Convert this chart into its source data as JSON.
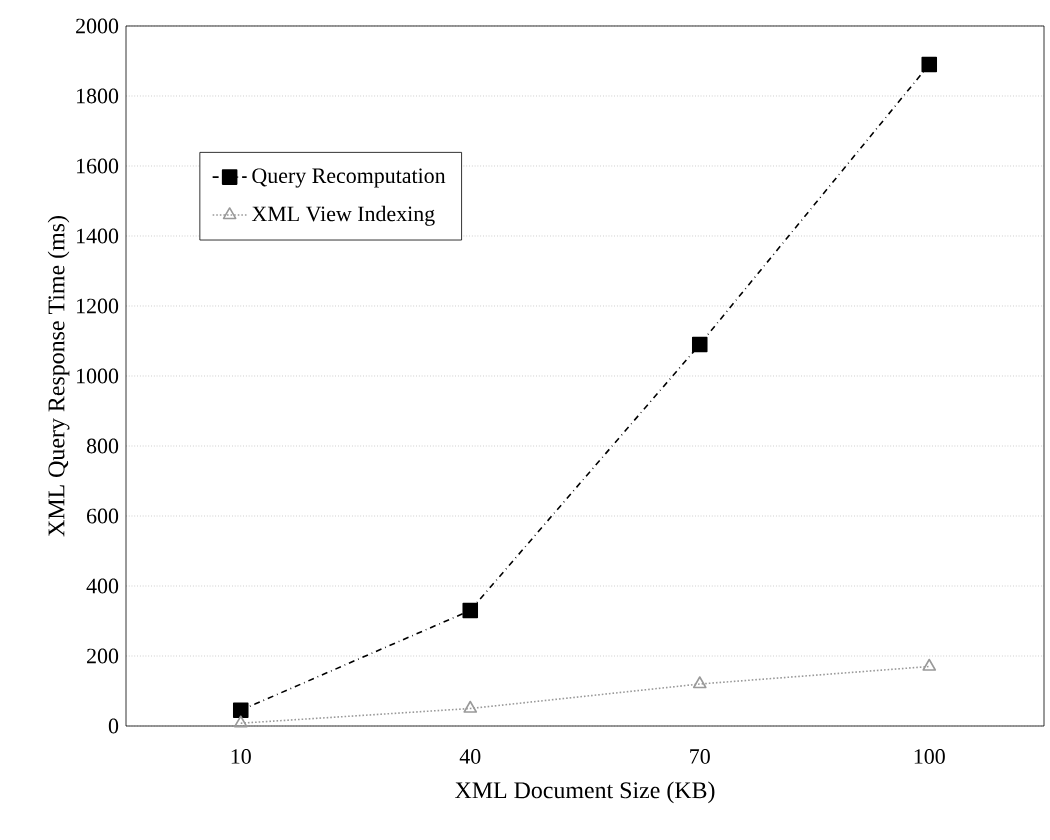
{
  "chart_data": {
    "type": "line",
    "xlabel": "XML Document Size (KB)",
    "ylabel": "XML Query Response Time (ms)",
    "categories": [
      "10",
      "40",
      "70",
      "100"
    ],
    "series": [
      {
        "name": "Query Recomputation",
        "color": "#000000",
        "values": [
          45,
          330,
          1090,
          1890
        ],
        "marker": "square",
        "line_style": "dashed"
      },
      {
        "name": "XML View Indexing",
        "color": "#999999",
        "values": [
          8,
          50,
          120,
          170
        ],
        "marker": "triangle",
        "line_style": "dotted"
      }
    ],
    "ylim": [
      0,
      2000
    ],
    "yticks": [
      0,
      200,
      400,
      600,
      800,
      1000,
      1200,
      1400,
      1600,
      1800,
      2000
    ],
    "grid": "y",
    "legend": "top left"
  }
}
